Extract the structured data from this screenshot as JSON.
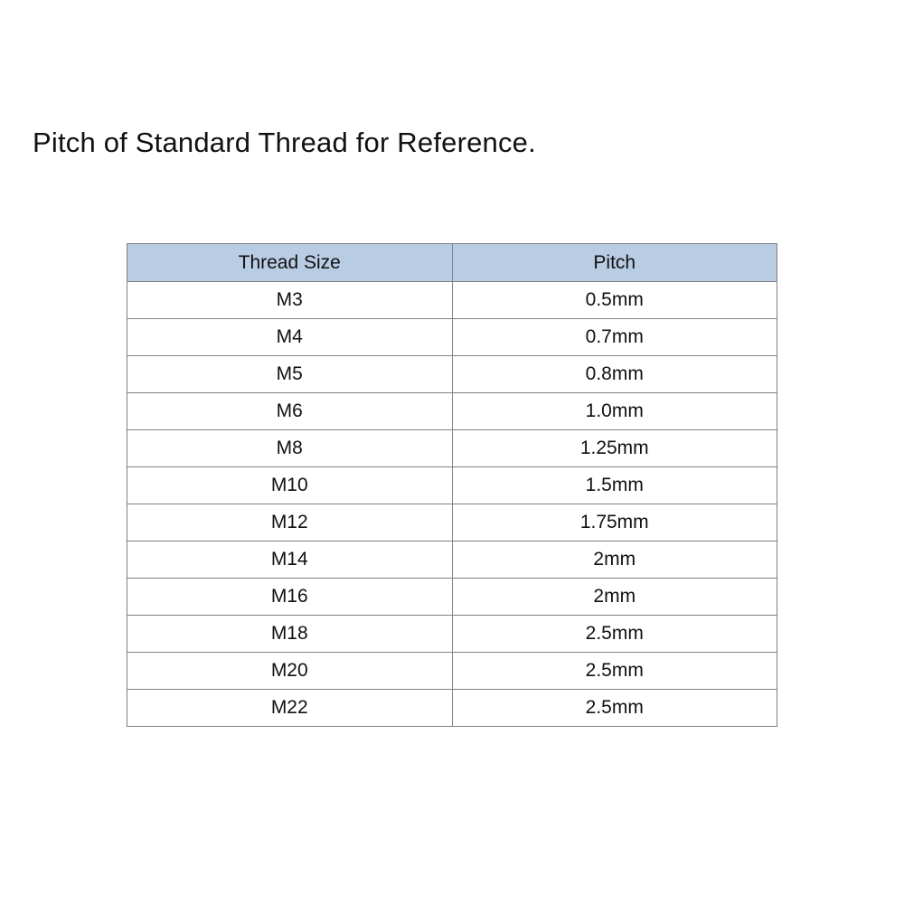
{
  "page": {
    "title": "Pitch of Standard Thread for Reference."
  },
  "table": {
    "headers": [
      "Thread Size",
      "Pitch"
    ],
    "rows": [
      [
        "M3",
        "0.5mm"
      ],
      [
        "M4",
        "0.7mm"
      ],
      [
        "M5",
        "0.8mm"
      ],
      [
        "M6",
        "1.0mm"
      ],
      [
        "M8",
        "1.25mm"
      ],
      [
        "M10",
        "1.5mm"
      ],
      [
        "M12",
        "1.75mm"
      ],
      [
        "M14",
        "2mm"
      ],
      [
        "M16",
        "2mm"
      ],
      [
        "M18",
        "2.5mm"
      ],
      [
        "M20",
        "2.5mm"
      ],
      [
        "M22",
        "2.5mm"
      ]
    ],
    "colors": {
      "header_bg": "#b8cce4",
      "border": "#808080",
      "outer_border": "#595959",
      "text": "#111111"
    }
  }
}
